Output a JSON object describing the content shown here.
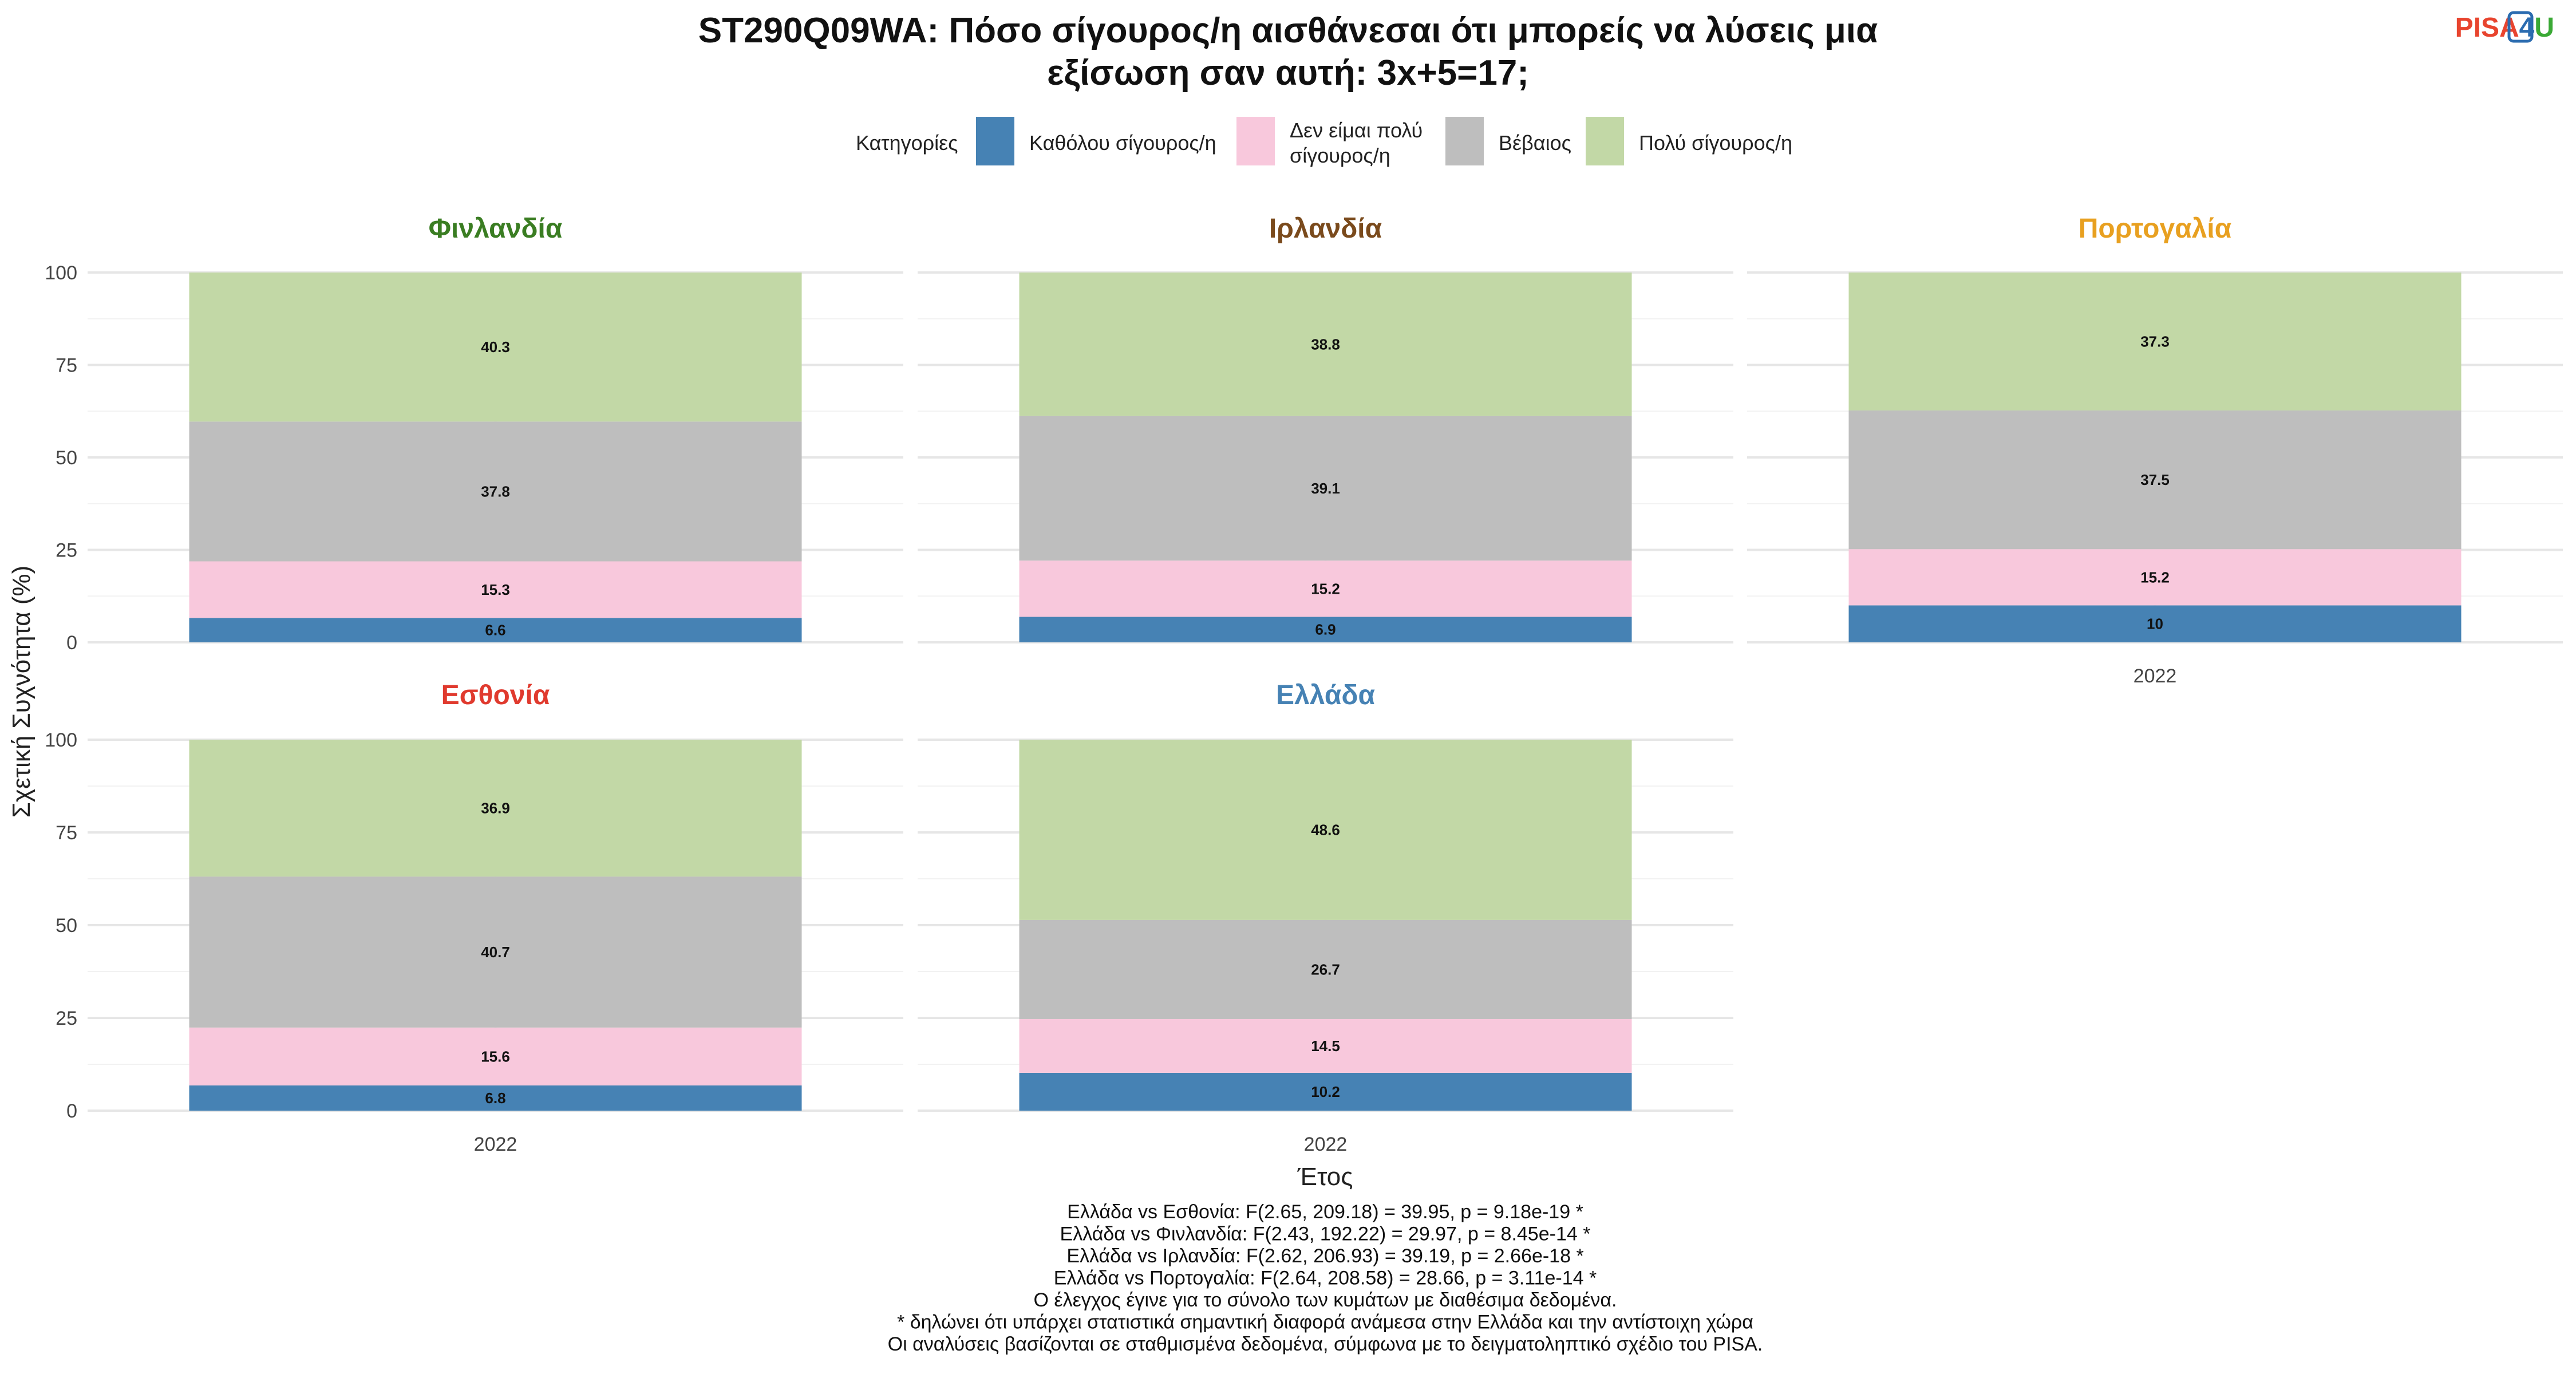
{
  "title_line1": "ST290Q09WA: Πόσο σίγουρος/η αισθάνεσαι ότι μπορείς να λύσεις μια",
  "title_line2": "εξίσωση σαν αυτή: 3x+5=17;",
  "logo": {
    "part1": "PISA",
    "part2": "4",
    "part3": "U",
    "colors": {
      "part1": "#e8442e",
      "part2": "#2b6cb0",
      "part3": "#3aa935"
    }
  },
  "legend": {
    "title": "Κατηγορίες",
    "items": [
      {
        "label": "Καθόλου σίγουρος/η",
        "color": "#4682b4"
      },
      {
        "label_lines": [
          "Δεν είμαι πολύ",
          "σίγουρος/η"
        ],
        "color": "#f8c8dc"
      },
      {
        "label": "Βέβαιος",
        "color": "#bebebe"
      },
      {
        "label": "Πολύ σίγουρος/η",
        "color": "#c2d8a6"
      }
    ]
  },
  "y_axis_label": "Σχετική Συχνότητα (%)",
  "x_axis_label": "Έτος",
  "notes": [
    "Ελλάδα vs Εσθονία: F(2.65, 209.18) = 39.95, p = 9.18e-19 *",
    "Ελλάδα vs Φινλανδία: F(2.43, 192.22) = 29.97, p = 8.45e-14 *",
    "Ελλάδα vs Ιρλανδία: F(2.62, 206.93) = 39.19, p = 2.66e-18 *",
    "Ελλάδα vs Πορτογαλία: F(2.64, 208.58) = 28.66, p = 3.11e-14 *",
    "Ο έλεγχος έγινε για το σύνολο των κυμάτων με διαθέσιμα δεδομένα.",
    "* δηλώνει ότι υπάρχει στατιστικά σημαντική διαφορά ανάμεσα στην Ελλάδα και την αντίστοιχη χώρα",
    "Οι αναλύσεις βασίζονται σε σταθμισμένα δεδομένα, σύμφωνα με το δειγματοληπτικό σχέδιο του PISA."
  ],
  "chart_data": {
    "type": "bar",
    "stacked": true,
    "ylim": [
      0,
      100
    ],
    "y_ticks": [
      0,
      25,
      50,
      75,
      100
    ],
    "categories": [
      "2022"
    ],
    "series_names": [
      "Καθόλου σίγουρος/η",
      "Δεν είμαι πολύ σίγουρος/η",
      "Βέβαιος",
      "Πολύ σίγουρος/η"
    ],
    "colors": [
      "#4682b4",
      "#f8c8dc",
      "#bebebe",
      "#c2d8a6"
    ],
    "panels": [
      {
        "country": "Φινλανδία",
        "color": "#3a7d22",
        "x": "2022",
        "values": [
          6.6,
          15.3,
          37.8,
          40.3
        ],
        "labels": [
          "6.6",
          "15.3",
          "37.8",
          "40.3"
        ]
      },
      {
        "country": "Ιρλανδία",
        "color": "#7a4a1c",
        "x": "2022",
        "values": [
          6.9,
          15.2,
          39.1,
          38.8
        ],
        "labels": [
          "6.9",
          "15.2",
          "39.1",
          "38.8"
        ]
      },
      {
        "country": "Πορτογαλία",
        "color": "#e8a020",
        "x": "2022",
        "values": [
          10,
          15.2,
          37.5,
          37.3
        ],
        "labels": [
          "10",
          "15.2",
          "37.5",
          "37.3"
        ]
      },
      {
        "country": "Εσθονία",
        "color": "#e03a2e",
        "x": "2022",
        "values": [
          6.8,
          15.6,
          40.7,
          36.9
        ],
        "labels": [
          "6.8",
          "15.6",
          "40.7",
          "36.9"
        ]
      },
      {
        "country": "Ελλάδα",
        "color": "#4682b4",
        "x": "2022",
        "values": [
          10.2,
          14.5,
          26.7,
          48.6
        ],
        "labels": [
          "10.2",
          "14.5",
          "26.7",
          "48.6"
        ]
      }
    ]
  }
}
